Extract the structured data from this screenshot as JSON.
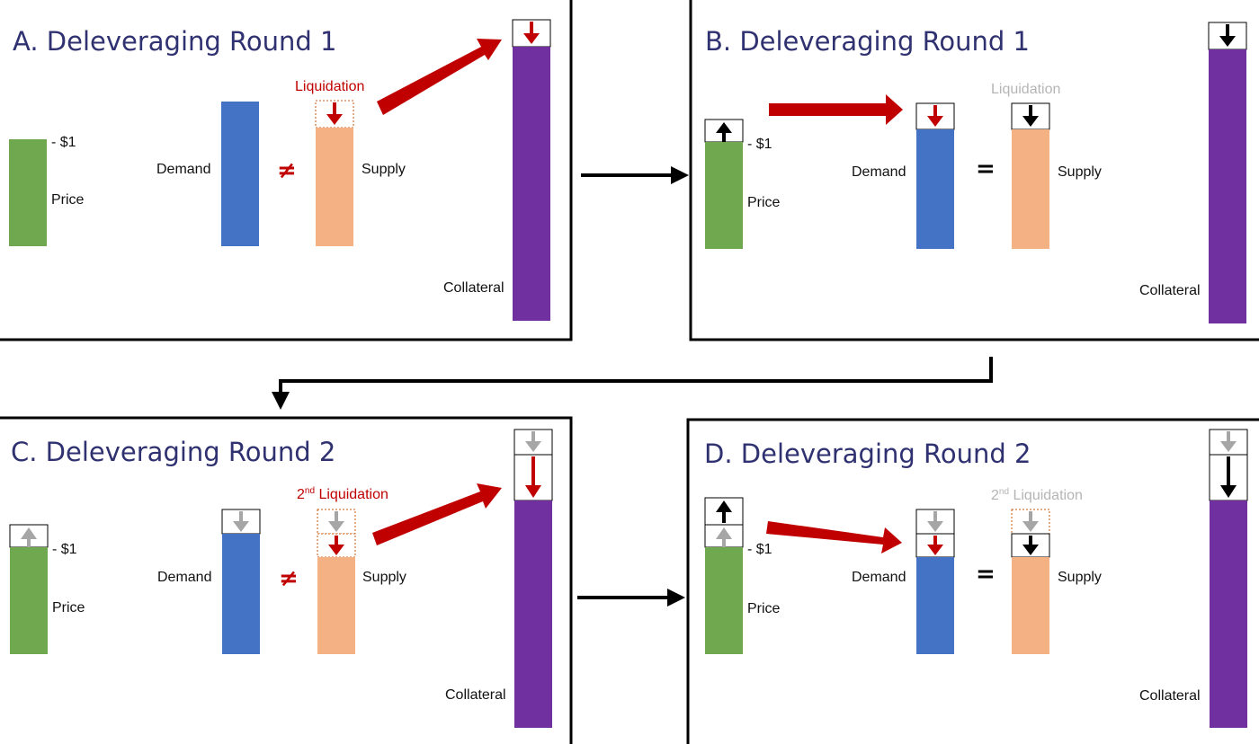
{
  "colors": {
    "price": "#70a84f",
    "demand": "#4472c4",
    "supply": "#f4b183",
    "collateral": "#7030a0",
    "red_arrow": "#c00000",
    "grey_arrow": "#a6a6a6",
    "title_text": "#2f3170"
  },
  "panels": {
    "a": {
      "title": "A. Deleveraging Round 1",
      "price_level": "- $1",
      "price_label": "Price",
      "demand_label": "Demand",
      "relation_symbol": "≠",
      "supply_label": "Supply",
      "collateral_label": "Collateral",
      "liquidation_label": "Liquidation"
    },
    "b": {
      "title": "B. Deleveraging Round 1",
      "price_level": "- $1",
      "price_label": "Price",
      "demand_label": "Demand",
      "relation_symbol": "=",
      "supply_label": "Supply",
      "collateral_label": "Collateral",
      "liquidation_label": "Liquidation"
    },
    "c": {
      "title": "C. Deleveraging Round 2",
      "price_level": "- $1",
      "price_label": "Price",
      "demand_label": "Demand",
      "relation_symbol": "≠",
      "supply_label": "Supply",
      "collateral_label": "Collateral",
      "liquidation_ordinal": "2",
      "liquidation_suffix": "nd",
      "liquidation_word": " Liquidation"
    },
    "d": {
      "title": "D. Deleveraging Round 2",
      "price_level": "- $1",
      "price_label": "Price",
      "demand_label": "Demand",
      "relation_symbol": "=",
      "supply_label": "Supply",
      "collateral_label": "Collateral",
      "liquidation_ordinal": "2",
      "liquidation_suffix": "nd",
      "liquidation_word": " Liquidation"
    }
  }
}
